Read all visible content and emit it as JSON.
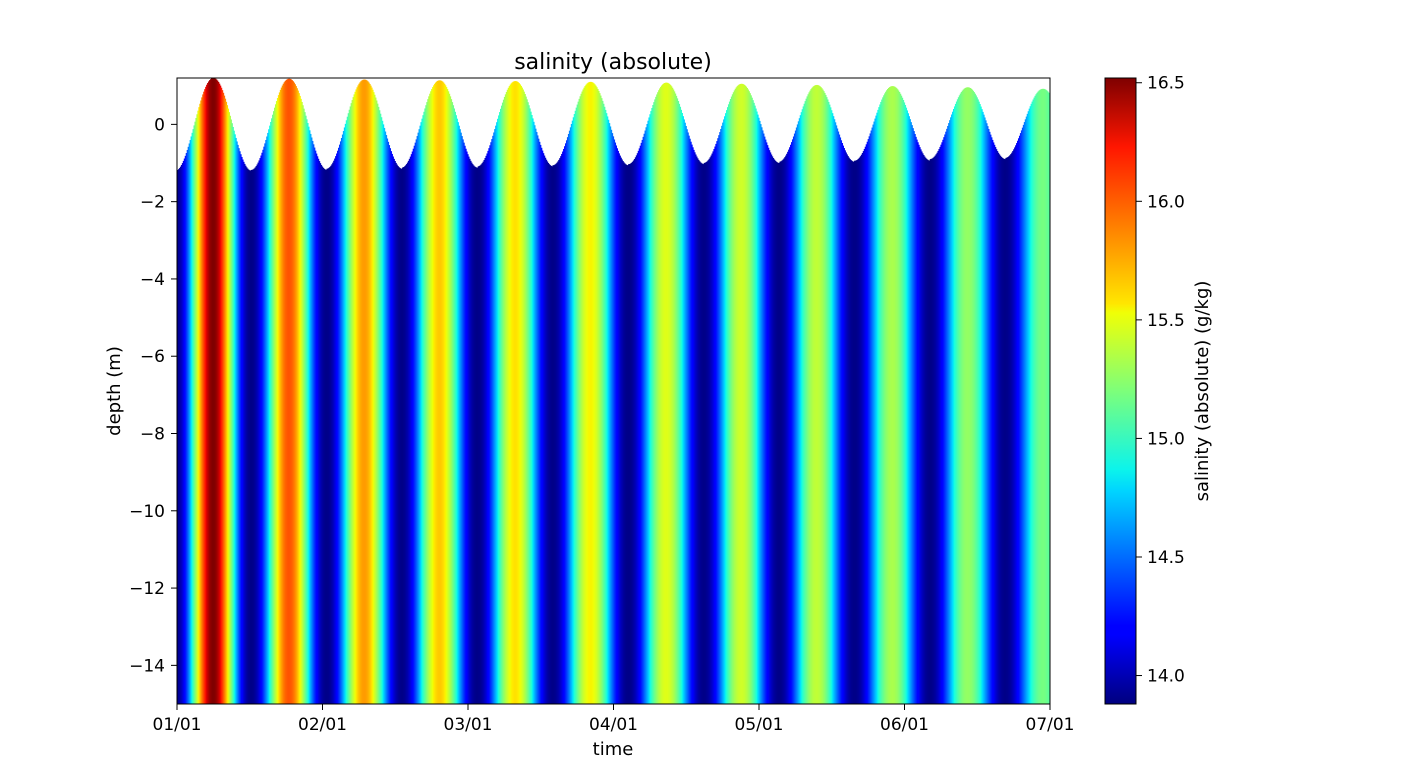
{
  "chart_data": {
    "type": "heatmap",
    "title": "salinity (absolute)",
    "xlabel": "time",
    "ylabel": "depth (m)",
    "colorbar_label": "salinity (absolute) (g/kg)",
    "colormap": "jet",
    "x_ticks": [
      "01/01",
      "02/01",
      "03/01",
      "04/01",
      "05/01",
      "06/01",
      "07/01"
    ],
    "x_range_days": [
      0,
      181
    ],
    "ylim": [
      -15,
      1.2
    ],
    "y_ticks": [
      0,
      -2,
      -4,
      -6,
      -8,
      -10,
      -12,
      -14
    ],
    "color_range": [
      13.88,
      16.52
    ],
    "colorbar_ticks": [
      16.5,
      16.0,
      15.5,
      15.0,
      14.5,
      14.0
    ],
    "surface_elevation": {
      "description": "tidal free surface",
      "peak_days": [
        7.5,
        23.2,
        38.8,
        54.4,
        70.1,
        85.7,
        101.4,
        117.0,
        132.6,
        148.3,
        163.9,
        179.5
      ],
      "peak_heights": [
        1.2,
        1.18,
        1.16,
        1.14,
        1.12,
        1.1,
        1.08,
        1.05,
        1.02,
        0.99,
        0.96,
        0.92
      ],
      "trough_heights": [
        -1.2,
        -1.18,
        -1.15,
        -1.12,
        -1.09,
        -1.06,
        -1.03,
        -1.0,
        -0.97,
        -0.94,
        -0.9,
        -0.87
      ]
    },
    "salinity_peaks": {
      "days": [
        7.5,
        23.2,
        38.8,
        54.4,
        70.1,
        85.7,
        101.4,
        117.0,
        132.6,
        148.3,
        163.9,
        179.5
      ],
      "max_values": [
        16.52,
        16.05,
        15.85,
        15.72,
        15.65,
        15.6,
        15.52,
        15.47,
        15.42,
        15.35,
        15.28,
        15.18
      ],
      "min_value": 13.9
    }
  }
}
